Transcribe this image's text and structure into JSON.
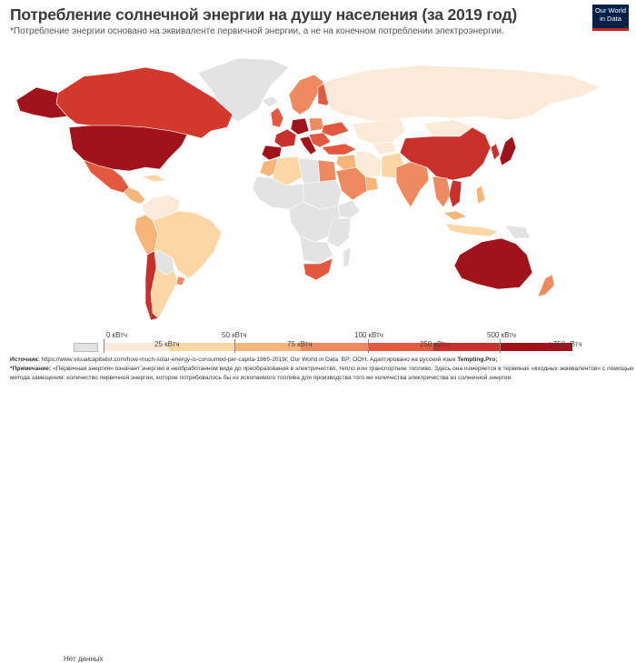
{
  "header": {
    "title": "Потребление солнечной энергии на душу населения (за 2019 год)",
    "subtitle": "*Потребление энергии основано на эквиваленте первичной энергии, а не на конечном потреблении электроэнергии.",
    "logo_line1": "Our World",
    "logo_line2": "in Data"
  },
  "legend": {
    "no_data": "Нет данных",
    "labels_top": [
      "0 кВтч",
      "50 кВтч",
      "100 кВтч",
      "500 кВтч"
    ],
    "labels_bottom": [
      "25 кВтч",
      "75 кВтч",
      "250 кВтч",
      ">750 кВтч"
    ],
    "colors": [
      "#fcead9",
      "#fbd7a5",
      "#f7b57b",
      "#ee8a60",
      "#e3593f",
      "#c9302c",
      "#a0131a"
    ]
  },
  "colors": {
    "no_data": "#e3e3e3",
    "border": "#ffffff"
  },
  "footer": {
    "source_label": "Источник:",
    "source_text": " https://www.visualcapitalist.com/how-much-solar-energy-is-consumed-per-capita-1965-2019/; Our World in Data; BP; OOH; Адаптировано на русский язык ",
    "source_brand": "Tempting.Pro;",
    "note_label": "*Примечание:",
    "note_text": " «Первичная энергия» означает энергию в необработанном виде до преобразования в электричество, тепло или транспортное топливо. Здесь она измеряется в терминах «входных эквивалентов» с помощью",
    "note_text2": "метода замещения: количество первичной энергии, которое потребовалось бы из ископаемого топлива для производства того же количества электричества из солнечной энергии."
  }
}
